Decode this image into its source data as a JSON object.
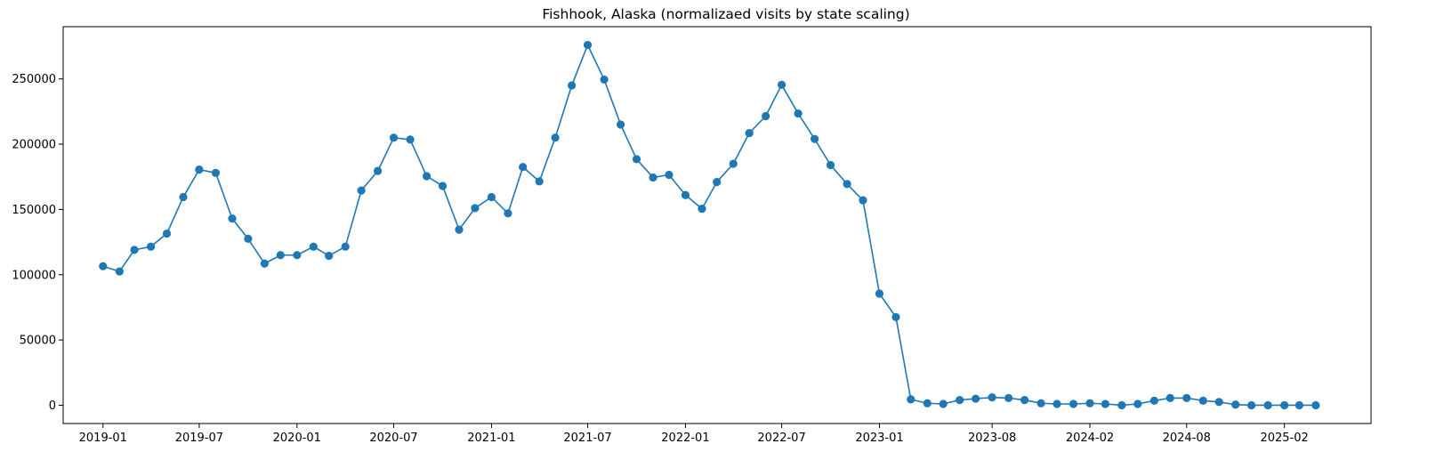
{
  "chart_data": {
    "type": "line",
    "title": "Fishhook, Alaska (normalizaed visits by state scaling)",
    "xlabel": "",
    "ylabel": "",
    "x_start": "2019-01",
    "x_step": "1 month",
    "x": [
      "2019-01",
      "2019-02",
      "2019-03",
      "2019-04",
      "2019-05",
      "2019-06",
      "2019-07",
      "2019-08",
      "2019-09",
      "2019-10",
      "2019-11",
      "2019-12",
      "2020-01",
      "2020-02",
      "2020-03",
      "2020-04",
      "2020-05",
      "2020-06",
      "2020-07",
      "2020-08",
      "2020-09",
      "2020-10",
      "2020-11",
      "2020-12",
      "2021-01",
      "2021-02",
      "2021-03",
      "2021-04",
      "2021-05",
      "2021-06",
      "2021-07",
      "2021-08",
      "2021-09",
      "2021-10",
      "2021-11",
      "2021-12",
      "2022-01",
      "2022-02",
      "2022-03",
      "2022-04",
      "2022-05",
      "2022-06",
      "2022-07",
      "2022-08",
      "2022-09",
      "2022-10",
      "2022-11",
      "2022-12",
      "2023-01",
      "2023-02",
      "2023-03",
      "2023-04",
      "2023-05",
      "2023-06",
      "2023-07",
      "2023-08",
      "2023-09",
      "2023-10",
      "2023-11",
      "2023-12",
      "2024-01",
      "2024-02",
      "2024-03",
      "2024-04",
      "2024-05",
      "2024-06",
      "2024-07",
      "2024-08",
      "2024-09",
      "2024-10",
      "2024-11",
      "2024-12",
      "2025-01",
      "2025-02",
      "2025-03",
      "2025-04"
    ],
    "series": [
      {
        "values": [
          106500,
          102500,
          119000,
          121500,
          131500,
          159500,
          180500,
          178000,
          143000,
          127500,
          108500,
          115000,
          115000,
          121500,
          114500,
          121500,
          164500,
          179500,
          205000,
          203500,
          175500,
          168000,
          134500,
          151000,
          159500,
          147000,
          182500,
          171500,
          205000,
          245000,
          276000,
          249500,
          215000,
          188500,
          174500,
          176500,
          161000,
          150500,
          171000,
          185000,
          208500,
          221500,
          245500,
          223500,
          204000,
          184000,
          169500,
          157000,
          85500,
          67500,
          4500,
          1500,
          1000,
          4000,
          5000,
          6000,
          5500,
          4000,
          1500,
          1000,
          1000,
          1500,
          1000,
          0,
          1000,
          3500,
          5500,
          5500,
          3500,
          2500,
          500,
          0,
          0,
          0,
          0,
          0
        ]
      }
    ],
    "x_tick_labels": [
      "2019-01",
      "2019-07",
      "2020-01",
      "2020-07",
      "2021-01",
      "2021-07",
      "2022-01",
      "2022-07",
      "2023-01",
      "2023-08",
      "2024-02",
      "2024-08",
      "2025-02"
    ],
    "y_ticks": [
      0,
      50000,
      100000,
      150000,
      200000,
      250000
    ],
    "xlim": [
      "2018-10-18",
      "2025-07-14"
    ],
    "ylim": [
      -14000,
      290000
    ],
    "grid": false,
    "line_color": "#1f77b4",
    "marker": "circle"
  }
}
